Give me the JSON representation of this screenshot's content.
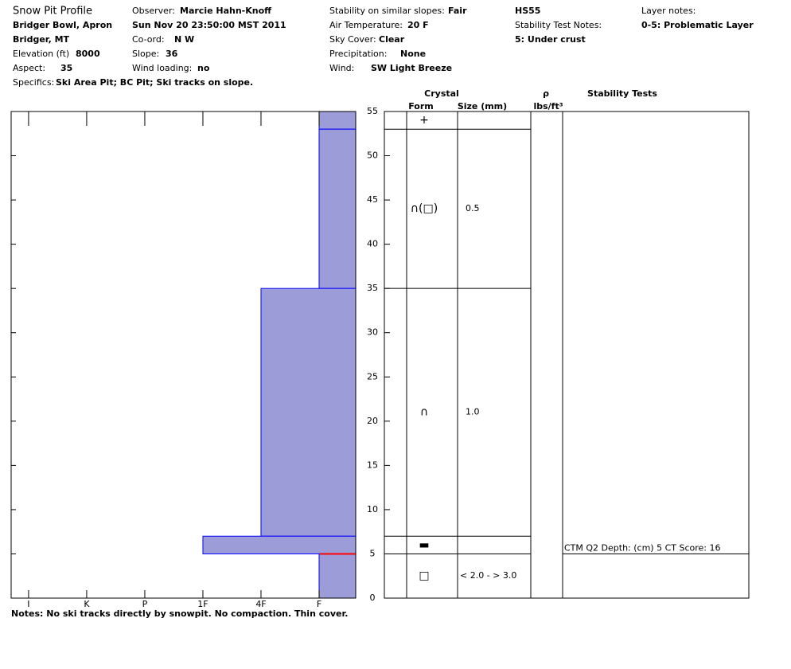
{
  "header": {
    "title": "Snow Pit Profile",
    "location": "Bridger Bowl, Apron",
    "region": "Bridger, MT",
    "elevation_label": "Elevation (ft)",
    "elevation": "8000",
    "aspect_label": "Aspect:",
    "aspect": "35",
    "specifics_label": "Specifics:",
    "specifics": "Ski Area Pit; BC Pit; Ski tracks on slope.",
    "observer_label": "Observer:",
    "observer": "Marcie Hahn-Knoff",
    "datetime": "Sun Nov 20 23:50:00 MST 2011",
    "coord_label": "Co-ord:",
    "coord": "N  W",
    "slope_label": "Slope:",
    "slope": "36",
    "wind_loading_label": "Wind loading:",
    "wind_loading": "no",
    "stability_label": "Stability on similar slopes:",
    "stability": "Fair",
    "air_temp_label": "Air Temperature:",
    "air_temp": "20 F",
    "sky_label": "Sky Cover:",
    "sky": "Clear",
    "precip_label": "Precipitation:",
    "precip": "None",
    "wind_label": "Wind:",
    "wind": "SW Light Breeze",
    "hs": "HS55",
    "test_notes_label": "Stability Test Notes:",
    "test_notes": "5: Under crust",
    "layer_notes_label": "Layer notes:",
    "layer_notes": "0-5: Problematic Layer"
  },
  "chart_data": {
    "type": "hardness-profile",
    "ylim": [
      0,
      55
    ],
    "yticks": [
      0,
      5,
      10,
      15,
      20,
      25,
      30,
      35,
      40,
      45,
      50,
      55
    ],
    "xlim": [
      6.3,
      0.37
    ],
    "xticks": [
      {
        "value": 6,
        "label": "I"
      },
      {
        "value": 5,
        "label": "K"
      },
      {
        "value": 4,
        "label": "P"
      },
      {
        "value": 3,
        "label": "1F"
      },
      {
        "value": 2,
        "label": "4F"
      },
      {
        "value": 1,
        "label": "F"
      }
    ],
    "layers": [
      {
        "bottom": 53,
        "top": 55,
        "hardness": 1
      },
      {
        "bottom": 35,
        "top": 53,
        "hardness": 1
      },
      {
        "bottom": 7,
        "top": 35,
        "hardness": 2
      },
      {
        "bottom": 5,
        "top": 7,
        "hardness": 3
      },
      {
        "bottom": 0,
        "top": 5,
        "hardness": 1
      }
    ],
    "color": "#9c9cd8",
    "edge_color": "#0000ff",
    "problem_depth": 5,
    "problem_color": "#ff0000"
  },
  "grain_table": {
    "crystal_header": "Crystal",
    "form_header": "Form",
    "size_header": "Size (mm)",
    "density_header": "ρ",
    "density_unit": "lbs/ft³",
    "tests_header": "Stability Tests",
    "rows": [
      {
        "form": "+"
      },
      {
        "form": "∩(□)",
        "size": "0.5"
      },
      {
        "form": "∩",
        "size": "1.0"
      },
      {
        "form": "▬"
      },
      {
        "form": "□",
        "size": "< 2.0 - > 3.0"
      }
    ],
    "tests": [
      {
        "depth": 5,
        "text": "CTM Q2 Depth: (cm) 5 CT Score: 16"
      }
    ]
  },
  "notes": "Notes:  No ski tracks directly by snowpit.  No compaction.  Thin cover."
}
